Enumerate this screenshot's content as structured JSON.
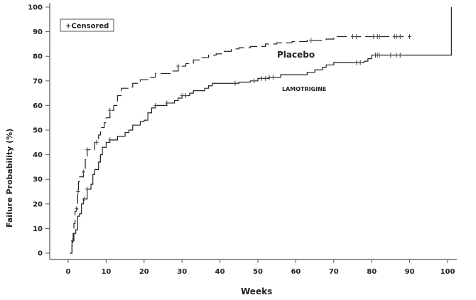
{
  "chart_data": {
    "type": "line",
    "subtype": "kaplan-meier step",
    "xlabel": "Weeks",
    "ylabel": "Failure Probability (%)",
    "xlim": [
      -3,
      102
    ],
    "ylim": [
      0,
      100
    ],
    "xticks": [
      0,
      10,
      20,
      30,
      40,
      50,
      60,
      70,
      80,
      90,
      100
    ],
    "yticks": [
      0,
      10,
      20,
      30,
      40,
      50,
      60,
      70,
      80,
      90,
      100
    ],
    "grid": false,
    "legend": {
      "text": "+Censored",
      "placement": "top-left"
    },
    "series": [
      {
        "name": "Placebo",
        "style": "dashed",
        "color": "#222222",
        "points": [
          [
            0.5,
            0
          ],
          [
            1,
            3
          ],
          [
            1.3,
            8
          ],
          [
            1.5,
            12
          ],
          [
            1.8,
            17
          ],
          [
            2.2,
            18
          ],
          [
            2.5,
            25
          ],
          [
            2.7,
            29
          ],
          [
            3,
            31
          ],
          [
            4,
            33
          ],
          [
            4.5,
            38
          ],
          [
            5,
            42
          ],
          [
            7,
            45
          ],
          [
            8,
            48
          ],
          [
            8.5,
            51
          ],
          [
            9.5,
            53
          ],
          [
            10,
            55
          ],
          [
            11,
            58
          ],
          [
            12,
            60
          ],
          [
            13,
            64
          ],
          [
            14,
            67
          ],
          [
            16,
            67.5
          ],
          [
            17,
            69
          ],
          [
            19,
            70.5
          ],
          [
            21,
            71.5
          ],
          [
            23,
            73
          ],
          [
            27,
            74
          ],
          [
            29,
            76
          ],
          [
            31,
            77
          ],
          [
            33,
            78.5
          ],
          [
            35,
            79.5
          ],
          [
            37,
            80.5
          ],
          [
            39,
            81
          ],
          [
            41,
            82
          ],
          [
            43,
            83
          ],
          [
            45,
            83.5
          ],
          [
            48,
            84
          ],
          [
            52,
            85
          ],
          [
            55,
            85.5
          ],
          [
            59,
            86
          ],
          [
            63,
            86.5
          ],
          [
            68,
            87
          ],
          [
            70,
            88
          ],
          [
            90,
            88
          ]
        ],
        "censored": [
          2.2,
          2.6,
          4,
          5,
          7.5,
          11,
          29,
          64,
          75,
          76,
          80.5,
          81.5,
          82,
          86,
          86.5,
          87.5,
          90
        ]
      },
      {
        "name": "LAMOTRIGINE",
        "style": "solid",
        "color": "#222222",
        "points": [
          [
            0.5,
            0
          ],
          [
            1,
            5
          ],
          [
            1.5,
            8
          ],
          [
            2,
            9.5
          ],
          [
            2.5,
            15
          ],
          [
            3,
            16
          ],
          [
            3.5,
            20
          ],
          [
            4,
            22
          ],
          [
            5,
            26
          ],
          [
            6,
            28
          ],
          [
            6.5,
            32
          ],
          [
            7,
            34
          ],
          [
            8,
            37
          ],
          [
            8.5,
            40
          ],
          [
            9,
            43
          ],
          [
            10,
            45
          ],
          [
            11,
            46
          ],
          [
            13,
            47.5
          ],
          [
            15,
            49
          ],
          [
            16,
            50
          ],
          [
            17,
            52
          ],
          [
            19,
            53.5
          ],
          [
            20,
            54
          ],
          [
            21,
            57
          ],
          [
            22,
            59
          ],
          [
            23,
            60
          ],
          [
            26,
            61
          ],
          [
            28,
            62
          ],
          [
            29,
            63
          ],
          [
            30,
            64
          ],
          [
            32,
            65
          ],
          [
            33,
            66
          ],
          [
            36,
            67
          ],
          [
            37,
            68
          ],
          [
            38,
            69
          ],
          [
            45,
            69.5
          ],
          [
            48,
            70
          ],
          [
            50,
            71
          ],
          [
            53,
            71.5
          ],
          [
            56,
            72.5
          ],
          [
            63,
            73.5
          ],
          [
            65,
            74.5
          ],
          [
            67,
            75.5
          ],
          [
            68,
            76.5
          ],
          [
            70,
            77.5
          ],
          [
            78,
            78
          ],
          [
            79,
            79
          ],
          [
            80,
            80.5
          ],
          [
            101,
            80.5
          ],
          [
            101,
            100
          ]
        ],
        "censored": [
          1.2,
          4.2,
          5,
          11,
          23,
          26,
          30,
          31,
          44,
          49,
          51,
          52,
          53,
          54,
          76,
          77,
          81,
          81.5,
          82,
          85,
          86.5,
          87.5
        ]
      }
    ]
  }
}
